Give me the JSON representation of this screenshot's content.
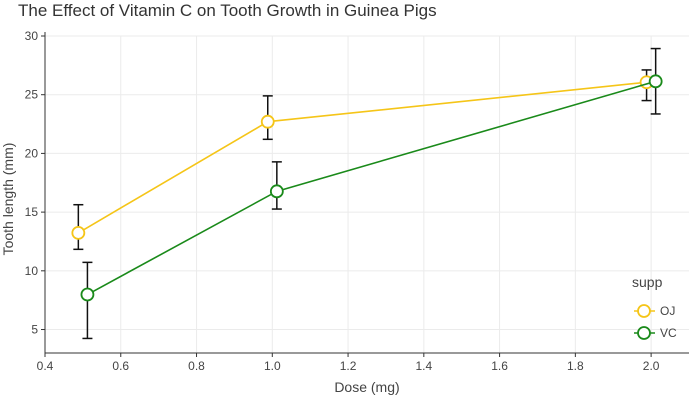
{
  "chart_data": {
    "type": "line",
    "title": "The Effect of Vitamin C on Tooth Growth in Guinea Pigs",
    "xlabel": "Dose (mg)",
    "ylabel": "Tooth length (mm)",
    "xlim": [
      0.4,
      2.1
    ],
    "ylim": [
      3,
      30
    ],
    "xticks": [
      0.4,
      0.6,
      0.8,
      1.0,
      1.2,
      1.4,
      1.6,
      1.8,
      2.0
    ],
    "xtick_labels": [
      "0.4",
      "0.6",
      "0.8",
      "1.0",
      "1.2",
      "1.4",
      "1.6",
      "1.8",
      "2.0"
    ],
    "yticks": [
      5,
      10,
      15,
      20,
      25,
      30
    ],
    "ytick_labels": [
      "5",
      "10",
      "15",
      "20",
      "25",
      "30"
    ],
    "grid": true,
    "legend": {
      "title": "supp",
      "position": "bottom-right"
    },
    "series": [
      {
        "name": "OJ",
        "color": "#F5C518",
        "points": [
          {
            "x": 0.5,
            "y": 13.23,
            "err_low": 11.83,
            "err_high": 15.63
          },
          {
            "x": 1.0,
            "y": 22.7,
            "err_low": 21.2,
            "err_high": 24.9
          },
          {
            "x": 2.0,
            "y": 26.06,
            "err_low": 24.5,
            "err_high": 27.11
          }
        ]
      },
      {
        "name": "VC",
        "color": "#1A8A1A",
        "points": [
          {
            "x": 0.5,
            "y": 7.98,
            "err_low": 4.24,
            "err_high": 10.72
          },
          {
            "x": 1.0,
            "y": 16.77,
            "err_low": 15.26,
            "err_high": 19.28
          },
          {
            "x": 2.0,
            "y": 26.14,
            "err_low": 23.36,
            "err_high": 28.93
          }
        ]
      }
    ]
  }
}
